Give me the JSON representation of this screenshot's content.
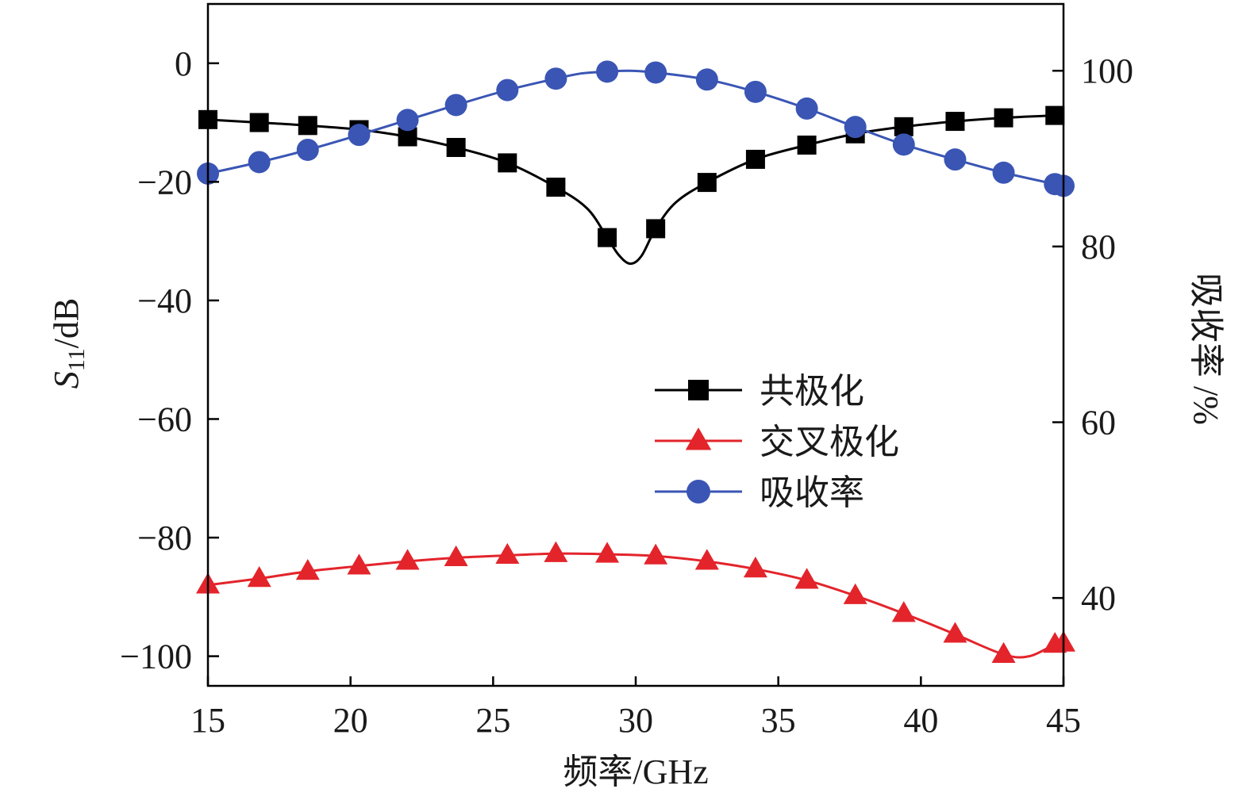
{
  "chart_data": {
    "type": "line",
    "xlabel": "频率/GHz",
    "ylabel_left": {
      "italic": "S",
      "sub": "11",
      "rest": "/dB"
    },
    "ylabel_right": "吸收率 /%",
    "xlim": [
      15,
      45
    ],
    "ylim_left": [
      -105,
      10
    ],
    "ylim_right": [
      30,
      107.6
    ],
    "x_ticks": [
      15,
      20,
      25,
      30,
      35,
      40,
      45
    ],
    "y_left_ticks": [
      0,
      -20,
      -40,
      -60,
      -80,
      -100
    ],
    "y_left_tick_labels": [
      "0",
      "−20",
      "−40",
      "−60",
      "−80",
      "−100"
    ],
    "y_right_ticks": [
      100,
      80,
      60,
      40
    ],
    "y_right_tick_labels": [
      "100",
      "80",
      "60",
      "40"
    ],
    "legend_position": "center-right",
    "grid": false,
    "series": [
      {
        "name": "共极化",
        "axis": "left",
        "color": "#000000",
        "marker": "square",
        "x": [
          15,
          16.8,
          18.5,
          20.3,
          22.0,
          23.7,
          25.5,
          27.2,
          29.0,
          30.7,
          32.5,
          34.2,
          36.0,
          37.7,
          39.4,
          41.2,
          42.9,
          44.7
        ],
        "values": [
          -9.5,
          -10.0,
          -10.5,
          -11.2,
          -12.4,
          -14.2,
          -16.8,
          -20.9,
          -29.4,
          -27.9,
          -20.1,
          -16.2,
          -13.8,
          -11.9,
          -10.7,
          -9.8,
          -9.2,
          -8.8
        ],
        "curve_x": [
          15,
          16.8,
          18.5,
          20.3,
          22.0,
          23.7,
          25.5,
          27.2,
          28.3,
          29.0,
          29.4,
          29.8,
          30.2,
          30.7,
          31.4,
          32.5,
          34.2,
          36.0,
          37.7,
          39.4,
          41.2,
          42.9,
          44.7
        ],
        "curve_y": [
          -9.5,
          -10.0,
          -10.5,
          -11.2,
          -12.4,
          -14.2,
          -16.8,
          -20.9,
          -24.5,
          -29.4,
          -32.3,
          -33.8,
          -32.5,
          -27.9,
          -23.5,
          -20.1,
          -16.2,
          -13.8,
          -11.9,
          -10.7,
          -9.8,
          -9.2,
          -8.8
        ]
      },
      {
        "name": "交叉极化",
        "axis": "left",
        "color": "#e3242b",
        "marker": "triangle",
        "x": [
          15,
          16.8,
          18.5,
          20.3,
          22.0,
          23.7,
          25.5,
          27.2,
          29.0,
          30.7,
          32.5,
          34.2,
          36.0,
          37.7,
          39.4,
          41.2,
          42.9,
          44.7,
          45
        ],
        "values": [
          -88.0,
          -86.9,
          -85.7,
          -84.8,
          -84.0,
          -83.4,
          -83.0,
          -82.7,
          -82.8,
          -83.1,
          -84.0,
          -85.3,
          -87.2,
          -89.8,
          -92.8,
          -96.3,
          -99.7,
          -98.0,
          -97.8
        ],
        "curve_x": [
          15,
          16.8,
          18.5,
          20.3,
          22.0,
          23.7,
          25.5,
          27.2,
          29.0,
          30.7,
          32.5,
          34.2,
          36.0,
          37.7,
          39.4,
          41.2,
          42.9,
          43.8,
          44.7,
          45
        ],
        "curve_y": [
          -88.0,
          -86.9,
          -85.7,
          -84.8,
          -84.0,
          -83.4,
          -83.0,
          -82.7,
          -82.8,
          -83.1,
          -84.0,
          -85.3,
          -87.2,
          -89.8,
          -92.8,
          -96.3,
          -99.7,
          -100.0,
          -98.0,
          -97.8
        ]
      },
      {
        "name": "吸收率",
        "axis": "right",
        "color": "#3a55b4",
        "marker": "circle",
        "x": [
          15,
          16.8,
          18.5,
          20.3,
          22.0,
          23.7,
          25.5,
          27.2,
          29.0,
          30.7,
          32.5,
          34.2,
          36.0,
          37.7,
          39.4,
          41.2,
          42.9,
          44.7,
          45
        ],
        "values": [
          88.3,
          89.6,
          91.0,
          92.7,
          94.4,
          96.1,
          97.8,
          99.1,
          99.9,
          99.8,
          99.0,
          97.6,
          95.7,
          93.6,
          91.6,
          89.9,
          88.4,
          87.1,
          86.9
        ],
        "curve_x": [
          15,
          16.8,
          18.5,
          20.3,
          22.0,
          23.7,
          25.5,
          27.2,
          28.1,
          29.0,
          29.8,
          30.7,
          32.5,
          34.2,
          36.0,
          37.7,
          39.4,
          41.2,
          42.9,
          44.7,
          45
        ],
        "curve_y": [
          88.3,
          89.6,
          91.0,
          92.7,
          94.4,
          96.1,
          97.8,
          99.1,
          99.7,
          99.9,
          100.0,
          99.8,
          99.0,
          97.6,
          95.7,
          93.6,
          91.6,
          89.9,
          88.4,
          87.1,
          86.9
        ]
      }
    ]
  }
}
